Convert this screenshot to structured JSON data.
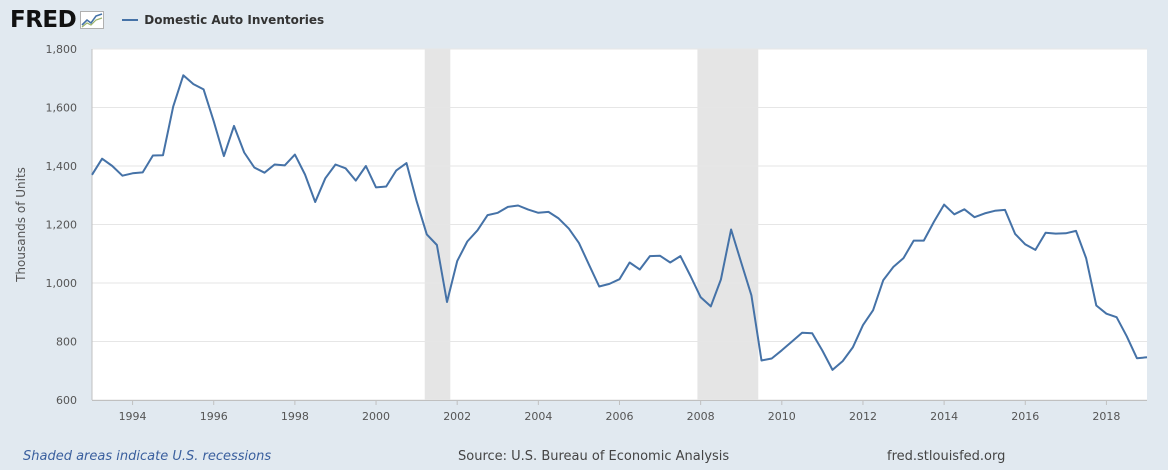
{
  "header": {
    "logo_text": "FRED",
    "logo_icon": "chart-line-icon",
    "series_name": "Domestic Auto Inventories",
    "series_color": "#4572a7"
  },
  "footer": {
    "recessions_note": "Shaded areas indicate U.S. recessions",
    "source": "Source: U.S. Bureau of Economic Analysis",
    "site": "fred.stlouisfed.org"
  },
  "chart_data": {
    "type": "line",
    "title": "",
    "xlabel": "",
    "ylabel": "Thousands of Units",
    "xlim": [
      1993.0,
      2019.0
    ],
    "ylim": [
      600,
      1800
    ],
    "yticks": [
      600,
      800,
      1000,
      1200,
      1400,
      1600,
      1800
    ],
    "ytick_labels": [
      "600",
      "800",
      "1,000",
      "1,200",
      "1,400",
      "1,600",
      "1,800"
    ],
    "xticks": [
      1994,
      1996,
      1998,
      2000,
      2002,
      2004,
      2006,
      2008,
      2010,
      2012,
      2014,
      2016,
      2018
    ],
    "grid": true,
    "legend": "top-left",
    "recessions": [
      [
        2001.2,
        2001.83
      ],
      [
        2007.92,
        2009.42
      ]
    ],
    "colors": {
      "line": "#4572a7",
      "recession": "#e5e5e5",
      "grid": "#e6e6e6",
      "plot_bg": "#ffffff"
    },
    "series": [
      {
        "name": "Domestic Auto Inventories",
        "x": [
          1993.0,
          1993.25,
          1993.5,
          1993.75,
          1994.0,
          1994.25,
          1994.5,
          1994.75,
          1995.0,
          1995.25,
          1995.5,
          1995.75,
          1996.0,
          1996.25,
          1996.5,
          1996.75,
          1997.0,
          1997.25,
          1997.5,
          1997.75,
          1998.0,
          1998.25,
          1998.5,
          1998.75,
          1999.0,
          1999.25,
          1999.5,
          1999.75,
          2000.0,
          2000.25,
          2000.5,
          2000.75,
          2001.0,
          2001.25,
          2001.5,
          2001.75,
          2002.0,
          2002.25,
          2002.5,
          2002.75,
          2003.0,
          2003.25,
          2003.5,
          2003.75,
          2004.0,
          2004.25,
          2004.5,
          2004.75,
          2005.0,
          2005.25,
          2005.5,
          2005.75,
          2006.0,
          2006.25,
          2006.5,
          2006.75,
          2007.0,
          2007.25,
          2007.5,
          2007.75,
          2008.0,
          2008.25,
          2008.5,
          2008.75,
          2009.0,
          2009.25,
          2009.5,
          2009.75,
          2010.0,
          2010.25,
          2010.5,
          2010.75,
          2011.0,
          2011.25,
          2011.5,
          2011.75,
          2012.0,
          2012.25,
          2012.5,
          2012.75,
          2013.0,
          2013.25,
          2013.5,
          2013.75,
          2014.0,
          2014.25,
          2014.5,
          2014.75,
          2015.0,
          2015.25,
          2015.5,
          2015.75,
          2016.0,
          2016.25,
          2016.5,
          2016.75,
          2017.0,
          2017.25,
          2017.5,
          2017.75,
          2018.0,
          2018.25,
          2018.5,
          2018.75,
          2019.0
        ],
        "values": [
          1370,
          1425,
          1400,
          1367,
          1375,
          1378,
          1436,
          1437,
          1603,
          1710,
          1680,
          1662,
          1553,
          1434,
          1537,
          1446,
          1395,
          1377,
          1405,
          1402,
          1439,
          1371,
          1277,
          1358,
          1405,
          1392,
          1350,
          1400,
          1327,
          1330,
          1385,
          1410,
          1280,
          1166,
          1130,
          935,
          1075,
          1142,
          1180,
          1232,
          1240,
          1260,
          1265,
          1251,
          1240,
          1243,
          1221,
          1186,
          1137,
          1062,
          988,
          997,
          1013,
          1070,
          1046,
          1092,
          1093,
          1070,
          1092,
          1024,
          951,
          920,
          1012,
          1183,
          1070,
          958,
          735,
          742,
          770,
          800,
          830,
          828,
          769,
          703,
          733,
          780,
          856,
          907,
          1010,
          1055,
          1085,
          1145,
          1145,
          1210,
          1268,
          1235,
          1252,
          1225,
          1238,
          1247,
          1250,
          1168,
          1132,
          1113,
          1172,
          1169,
          1170,
          1178,
          1085,
          923,
          895,
          883,
          818,
          743,
          746
        ]
      }
    ]
  }
}
